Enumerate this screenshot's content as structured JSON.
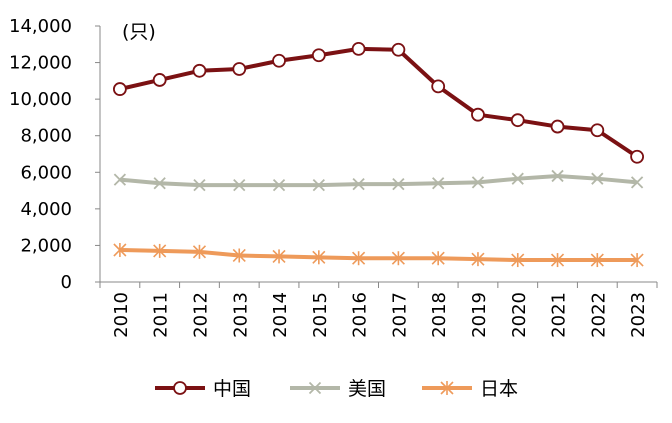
{
  "chart_data": {
    "type": "line",
    "unit_label": "(只)",
    "categories": [
      "2010",
      "2011",
      "2012",
      "2013",
      "2014",
      "2015",
      "2016",
      "2017",
      "2018",
      "2019",
      "2020",
      "2021",
      "2022",
      "2023"
    ],
    "y_ticks": [
      "0",
      "2,000",
      "4,000",
      "6,000",
      "8,000",
      "10,000",
      "12,000",
      "14,000"
    ],
    "ylim": [
      0,
      14000
    ],
    "grid": false,
    "legend_position": "bottom",
    "series": [
      {
        "name": "中国",
        "marker": "circle",
        "color": "#7B1113",
        "values": [
          10550,
          11050,
          11550,
          11650,
          12100,
          12400,
          12750,
          12700,
          10700,
          9150,
          8850,
          8500,
          8300,
          6850
        ]
      },
      {
        "name": "美国",
        "marker": "x",
        "color": "#B3B7A8",
        "values": [
          5600,
          5400,
          5300,
          5300,
          5300,
          5300,
          5350,
          5350,
          5400,
          5450,
          5650,
          5800,
          5650,
          5450
        ]
      },
      {
        "name": "日本",
        "marker": "star",
        "color": "#EE9A5A",
        "values": [
          1750,
          1700,
          1650,
          1450,
          1400,
          1350,
          1300,
          1300,
          1300,
          1250,
          1200,
          1200,
          1200,
          1200
        ]
      }
    ]
  }
}
